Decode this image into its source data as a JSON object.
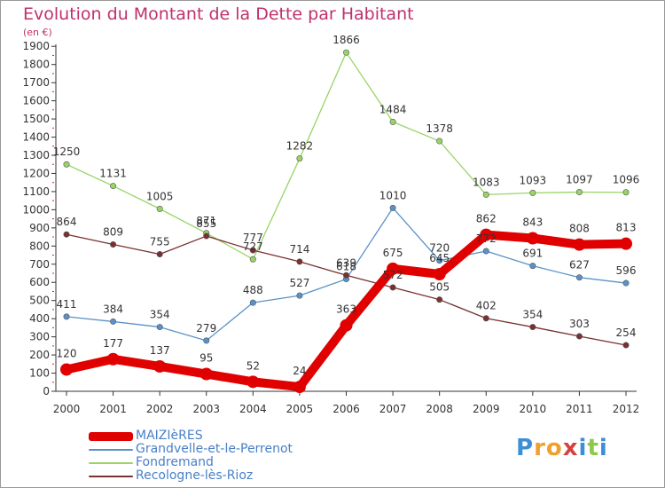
{
  "title": "Evolution du Montant de la Dette par Habitant",
  "subtitle": "(en €)",
  "logo": {
    "letters": [
      "P",
      "r",
      "o",
      "x",
      "i",
      "t",
      "i"
    ],
    "colors": [
      "#3a8fd6",
      "#f0a030",
      "#f0a030",
      "#d84040",
      "#3a8fd6",
      "#8cc84a",
      "#3a8fd6"
    ]
  },
  "chart_data": {
    "type": "line",
    "title": "Evolution du Montant de la Dette par Habitant",
    "subtitle": "(en €)",
    "xlabel": "",
    "ylabel": "",
    "x": [
      "2000",
      "2001",
      "2002",
      "2003",
      "2004",
      "2005",
      "2006",
      "2007",
      "2008",
      "2009",
      "2010",
      "2011",
      "2012"
    ],
    "ylim": [
      0,
      1950
    ],
    "yticks": [
      "0",
      "100",
      "200",
      "300",
      "400",
      "500",
      "600",
      "700",
      "800",
      "900",
      "1000",
      "1100",
      "1200",
      "1300",
      "1400",
      "1500",
      "1600",
      "1700",
      "1800",
      "1900"
    ],
    "grid": false,
    "legend_position": "bottom-left",
    "series": [
      {
        "name": "MAIZIèRES",
        "color": "#e00000",
        "values": [
          120,
          177,
          137,
          95,
          52,
          24,
          363,
          675,
          645,
          862,
          843,
          808,
          813
        ]
      },
      {
        "name": "Grandvelle-et-le-Perrenot",
        "color": "#5a92c8",
        "values": [
          411,
          384,
          354,
          279,
          488,
          527,
          618,
          1010,
          720,
          772,
          691,
          627,
          596
        ]
      },
      {
        "name": "Fondremand",
        "color": "#99d466",
        "values": [
          1250,
          1131,
          1005,
          871,
          727,
          1282,
          1866,
          1484,
          1378,
          1083,
          1093,
          1097,
          1096
        ]
      },
      {
        "name": "Recologne-lès-Rioz",
        "color": "#7a3030",
        "values": [
          864,
          809,
          755,
          855,
          777,
          714,
          639,
          572,
          505,
          402,
          354,
          303,
          254
        ]
      }
    ]
  }
}
